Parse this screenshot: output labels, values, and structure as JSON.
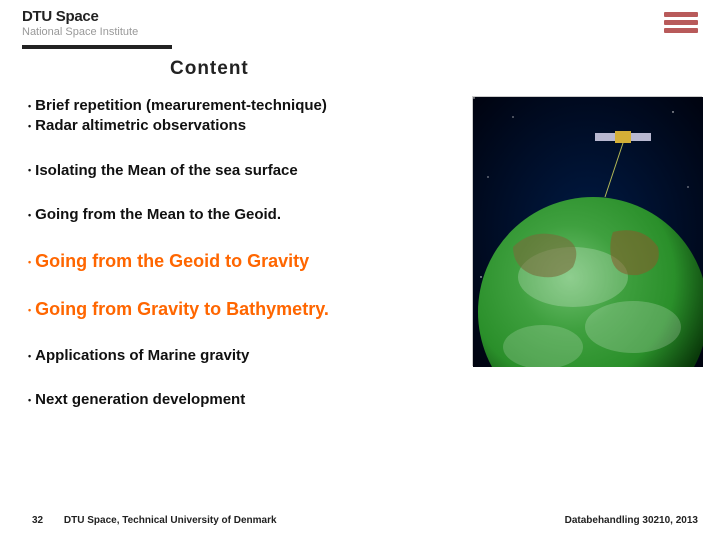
{
  "header": {
    "logo_main": "DTU Space",
    "logo_sub": "National Space Institute"
  },
  "title": "Content",
  "bullets": [
    {
      "text": "Brief repetition (mearurement-technique)",
      "class": "item"
    },
    {
      "text": "Radar altimetric observations",
      "class": "item"
    },
    {
      "text": "Isolating the Mean of the sea surface",
      "class": "item",
      "gap_before": true
    },
    {
      "text": "Going from the Mean to the Geoid.",
      "class": "item",
      "gap_before": true
    },
    {
      "text": "Going from the Geoid to Gravity",
      "class": "item orange",
      "gap_before": true
    },
    {
      "text": "Going from Gravity  to Bathymetry.",
      "class": "item orange",
      "gap_before": true
    },
    {
      "text": "Applications of Marine gravity",
      "class": "item",
      "gap_before": true
    },
    {
      "text": "Next generation development",
      "class": "item",
      "gap_before": true
    }
  ],
  "image": {
    "description": "Satellite above Earth with gravity/geoid visualization",
    "gradient_top": "#000014",
    "gradient_bottom": "#001a33",
    "earth_colors": [
      "#1a5f1a",
      "#2a8f2a",
      "#3fa03f",
      "#6fc06f"
    ],
    "cloud_overlay": "rgba(255,255,255,0.25)"
  },
  "footer": {
    "page": "32",
    "left": "DTU Space, Technical University of Denmark",
    "right": "Databehandling 30210, 2013"
  }
}
